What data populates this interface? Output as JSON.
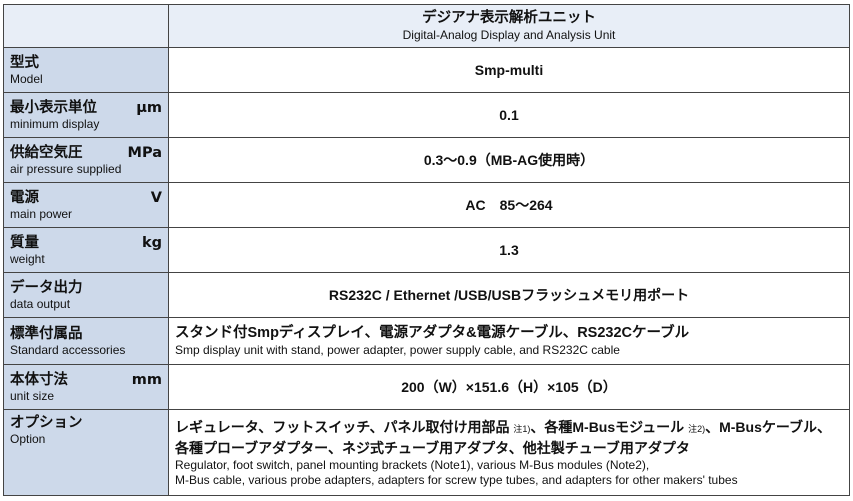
{
  "header": {
    "title_jp": "デジアナ表示解析ユニット",
    "title_en": "Digital-Analog Display and Analysis Unit"
  },
  "rows": [
    {
      "jp": "型式",
      "unit": "",
      "en": "Model",
      "value": "Smp-multi"
    },
    {
      "jp": "最小表示単位",
      "unit": "μm",
      "en": "minimum display",
      "value": "0.1"
    },
    {
      "jp": "供給空気圧",
      "unit": "MPa",
      "en": "air pressure supplied",
      "value": "0.3～0.9（MB-AG使用時）"
    },
    {
      "jp": "電源",
      "unit": "V",
      "en": "main power",
      "value": "AC　85～264"
    },
    {
      "jp": "質量",
      "unit": "kg",
      "en": "weight",
      "value": "1.3"
    },
    {
      "jp": "データ出力",
      "unit": "",
      "en": "data output",
      "value": "RS232C / Ethernet /USB/USBフラッシュメモリ用ポート"
    },
    {
      "jp": "標準付属品",
      "unit": "",
      "en": "Standard accessories",
      "value_jp": "スタンド付Smpディスプレイ、電源アダプタ&電源ケーブル、RS232Cケーブル",
      "value_en": "Smp display unit with stand, power adapter, power supply cable, and RS232C cable"
    },
    {
      "jp": "本体寸法",
      "unit": "mm",
      "en": "unit size",
      "value": "200（W）×151.6（H）×105（D）"
    },
    {
      "jp": "オプション",
      "unit": "",
      "en": "Option",
      "value_jp_1a": "レギュレータ、フットスイッチ、パネル取付け用部品",
      "note1": "注1)",
      "value_jp_1b": "、各種M-Busモジュール",
      "note2": "注2)",
      "value_jp_1c": "、M-Busケーブル、",
      "value_jp_2": "各種プローブアダプター、ネジ式チューブ用アダプタ、他社製チューブ用アダプタ",
      "value_en_1": "Regulator, foot switch, panel mounting brackets (Note1), various M-Bus modules (Note2),",
      "value_en_2": "M-Bus cable, various probe adapters, adapters for screw type tubes, and adapters for other makers' tubes"
    }
  ]
}
